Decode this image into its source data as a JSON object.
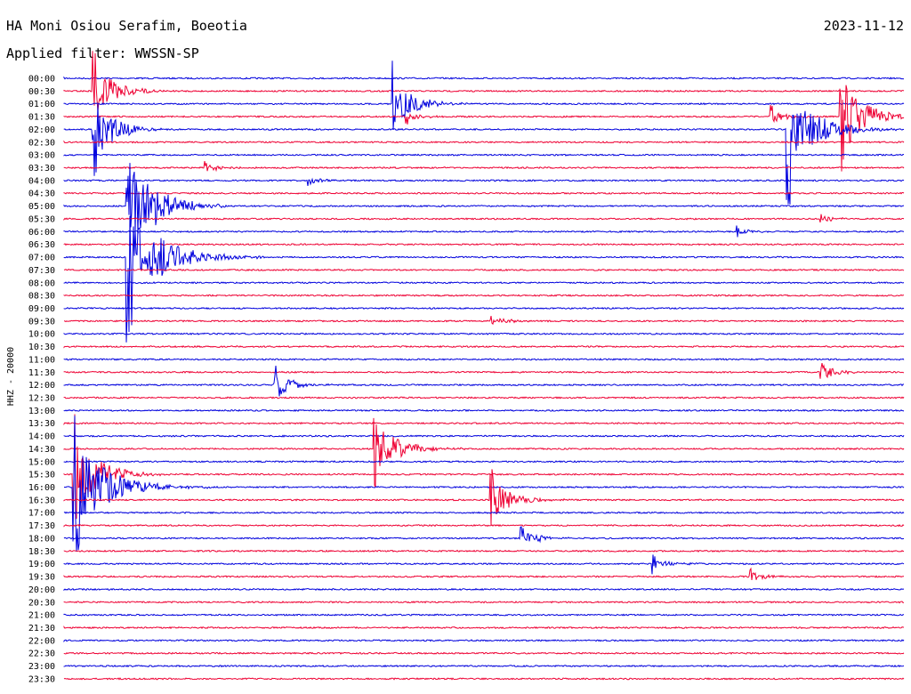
{
  "header": {
    "title": "HA Moni Osiou Serafim, Boeotia",
    "date": "2023-11-12",
    "filter_label": "Applied filter: WWSSN-SP"
  },
  "chart_data": {
    "type": "line",
    "ylabel": "HHZ - 20000",
    "colors": [
      "#0000dd",
      "#ee0033"
    ],
    "rows": [
      "00:00",
      "00:30",
      "01:00",
      "01:30",
      "02:00",
      "02:30",
      "03:00",
      "03:30",
      "04:00",
      "04:30",
      "05:00",
      "05:30",
      "06:00",
      "06:30",
      "07:00",
      "07:30",
      "08:00",
      "08:30",
      "09:00",
      "09:30",
      "10:00",
      "10:30",
      "11:00",
      "11:30",
      "12:00",
      "12:30",
      "13:00",
      "13:30",
      "14:00",
      "14:30",
      "15:00",
      "15:30",
      "16:00",
      "16:30",
      "17:00",
      "17:30",
      "18:00",
      "18:30",
      "19:00",
      "19:30",
      "20:00",
      "20:30",
      "21:00",
      "21:30",
      "22:00",
      "22:30",
      "23:00",
      "23:30"
    ],
    "events": [
      {
        "row": 1,
        "minute": 1.0,
        "amp": 120,
        "dur": 3.0
      },
      {
        "row": 2,
        "minute": 11.7,
        "amp": 110,
        "dur": 3.0
      },
      {
        "row": 3,
        "minute": 12.2,
        "amp": 20,
        "dur": 2.0
      },
      {
        "row": 3,
        "minute": 27.7,
        "amp": 160,
        "dur": 3.5
      },
      {
        "row": 3,
        "minute": 25.2,
        "amp": 30,
        "dur": 2.0
      },
      {
        "row": 4,
        "minute": 1.0,
        "amp": 140,
        "dur": 3.0
      },
      {
        "row": 4,
        "minute": 25.8,
        "amp": 200,
        "dur": 4.0
      },
      {
        "row": 7,
        "minute": 5.0,
        "amp": 20,
        "dur": 2.0
      },
      {
        "row": 8,
        "minute": 8.7,
        "amp": 15,
        "dur": 2.0
      },
      {
        "row": 10,
        "minute": 2.2,
        "amp": 250,
        "dur": 4.0
      },
      {
        "row": 11,
        "minute": 27.0,
        "amp": 15,
        "dur": 2.0
      },
      {
        "row": 12,
        "minute": 24.0,
        "amp": 15,
        "dur": 2.0
      },
      {
        "row": 14,
        "minute": 2.2,
        "amp": 220,
        "dur": 5.0
      },
      {
        "row": 19,
        "minute": 15.2,
        "amp": 20,
        "dur": 2.5
      },
      {
        "row": 23,
        "minute": 27.0,
        "amp": 40,
        "dur": 2.0
      },
      {
        "row": 24,
        "minute": 7.5,
        "amp": 60,
        "dur": 2.5
      },
      {
        "row": 29,
        "minute": 11.0,
        "amp": 120,
        "dur": 3.5
      },
      {
        "row": 31,
        "minute": 0.3,
        "amp": 180,
        "dur": 3.5
      },
      {
        "row": 32,
        "minute": 0.3,
        "amp": 200,
        "dur": 5.0
      },
      {
        "row": 33,
        "minute": 15.2,
        "amp": 90,
        "dur": 3.0
      },
      {
        "row": 36,
        "minute": 16.3,
        "amp": 30,
        "dur": 3.0
      },
      {
        "row": 38,
        "minute": 21.0,
        "amp": 25,
        "dur": 2.5
      },
      {
        "row": 39,
        "minute": 24.5,
        "amp": 20,
        "dur": 2.0
      }
    ]
  }
}
